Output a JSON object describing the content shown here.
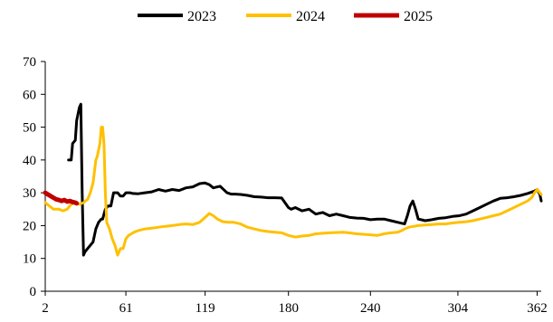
{
  "chart_data": {
    "type": "line",
    "title": "",
    "xlabel": "",
    "ylabel": "",
    "xlim": [
      2,
      365
    ],
    "ylim": [
      0,
      70
    ],
    "grid": false,
    "legend_position": "top-center",
    "x_ticks": [
      2,
      61,
      119,
      180,
      240,
      304,
      362
    ],
    "y_ticks": [
      0,
      10,
      20,
      30,
      40,
      50,
      60,
      70
    ],
    "series": [
      {
        "name": "2023",
        "color": "#000000",
        "x": [
          19,
          21,
          22,
          24,
          25,
          27,
          28,
          29,
          30,
          31,
          33,
          35,
          37,
          39,
          41,
          43,
          44,
          46,
          48,
          50,
          52,
          55,
          57,
          59,
          61,
          64,
          66,
          70,
          75,
          80,
          85,
          90,
          95,
          100,
          105,
          110,
          115,
          119,
          122,
          125,
          128,
          130,
          132,
          135,
          138,
          141,
          145,
          150,
          155,
          160,
          165,
          170,
          175,
          180,
          182,
          185,
          190,
          195,
          200,
          205,
          210,
          215,
          220,
          225,
          230,
          235,
          240,
          245,
          250,
          255,
          260,
          265,
          267,
          269,
          271,
          273,
          275,
          277,
          280,
          285,
          290,
          295,
          300,
          305,
          310,
          315,
          320,
          325,
          330,
          335,
          340,
          345,
          350,
          355,
          360,
          362,
          364,
          365
        ],
        "values": [
          40,
          40,
          45,
          46,
          52,
          56,
          57,
          30,
          11,
          12,
          13,
          14,
          15,
          19,
          21,
          22,
          22,
          25,
          26,
          26,
          30,
          30,
          29,
          29,
          30,
          30,
          29.8,
          29.7,
          30,
          30.3,
          31,
          30.5,
          31,
          30.7,
          31.5,
          31.8,
          32.8,
          33,
          32.5,
          31.5,
          31.8,
          32,
          31.2,
          30,
          29.6,
          29.6,
          29.5,
          29.2,
          28.8,
          28.7,
          28.5,
          28.5,
          28.4,
          25.5,
          25,
          25.5,
          24.5,
          25,
          23.5,
          24,
          23,
          23.5,
          23,
          22.5,
          22.3,
          22.2,
          21.8,
          22,
          22,
          21.5,
          21,
          20.5,
          23,
          26,
          27.5,
          25,
          22,
          21.8,
          21.5,
          21.8,
          22.2,
          22.4,
          22.8,
          23,
          23.5,
          24.5,
          25.5,
          26.5,
          27.5,
          28.3,
          28.5,
          28.8,
          29.2,
          29.8,
          30.5,
          31,
          29.5,
          27.5
        ]
      },
      {
        "name": "2024",
        "color": "#FFC000",
        "x": [
          2,
          5,
          8,
          12,
          15,
          18,
          21,
          24,
          27,
          30,
          33,
          35,
          37,
          39,
          40,
          42,
          43,
          44,
          45,
          46,
          47,
          49,
          51,
          53,
          55,
          57,
          59,
          61,
          63,
          65,
          67,
          70,
          75,
          80,
          85,
          90,
          95,
          100,
          105,
          110,
          115,
          119,
          122,
          125,
          128,
          132,
          136,
          140,
          145,
          150,
          155,
          160,
          165,
          170,
          175,
          180,
          185,
          190,
          195,
          200,
          210,
          220,
          230,
          240,
          245,
          250,
          255,
          260,
          263,
          265,
          268,
          272,
          275,
          280,
          285,
          290,
          295,
          300,
          305,
          310,
          315,
          320,
          325,
          330,
          335,
          340,
          345,
          350,
          355,
          358,
          360,
          362,
          365
        ],
        "values": [
          27,
          26,
          25,
          25,
          24.5,
          25,
          26.5,
          27,
          26.5,
          27,
          28,
          30,
          33,
          40,
          41,
          45,
          50,
          50,
          45,
          30,
          21,
          19,
          16,
          14,
          11,
          13,
          13,
          16,
          17,
          17.5,
          18,
          18.5,
          19,
          19.2,
          19.5,
          19.8,
          20,
          20.3,
          20.5,
          20.3,
          21,
          22.5,
          23.7,
          23,
          22,
          21.2,
          21,
          21,
          20.5,
          19.5,
          19,
          18.5,
          18.2,
          18,
          17.8,
          17,
          16.5,
          16.8,
          17,
          17.5,
          17.8,
          18,
          17.5,
          17.2,
          17,
          17.5,
          17.8,
          18,
          18.5,
          19,
          19.5,
          19.8,
          20,
          20.2,
          20.3,
          20.5,
          20.5,
          20.8,
          21,
          21.2,
          21.5,
          22,
          22.5,
          23,
          23.5,
          24.5,
          25.5,
          26.5,
          27.5,
          28.5,
          30,
          31,
          29.5
        ]
      },
      {
        "name": "2025",
        "color": "#C00000",
        "x": [
          2,
          4,
          6,
          8,
          10,
          12,
          14,
          16,
          18,
          20,
          22,
          24,
          25
        ],
        "values": [
          30,
          29.5,
          29,
          28.5,
          28,
          27.8,
          27.5,
          27.8,
          27.3,
          27.5,
          27.2,
          27,
          26.8
        ]
      }
    ]
  }
}
